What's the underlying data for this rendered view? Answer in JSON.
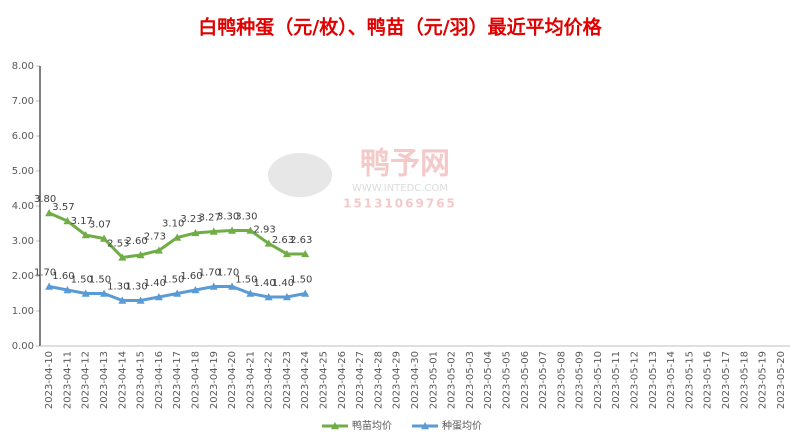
{
  "chart_data": {
    "type": "line",
    "title": "白鸭种蛋（元/枚）、鸭苗（元/羽）最近平均价格",
    "watermark": {
      "name": "鸭予网",
      "url": "WWW.INTEDC.COM",
      "phone": "15131069765"
    },
    "categories": [
      "2023-04-10",
      "2023-04-11",
      "2023-04-12",
      "2023-04-13",
      "2023-04-14",
      "2023-04-15",
      "2023-04-16",
      "2023-04-17",
      "2023-04-18",
      "2023-04-19",
      "2023-04-20",
      "2023-04-21",
      "2023-04-22",
      "2023-04-23",
      "2023-04-24",
      "2023-04-25",
      "2023-04-26",
      "2023-04-27",
      "2023-04-28",
      "2023-04-29",
      "2023-04-30",
      "2023-05-01",
      "2023-05-02",
      "2023-05-03",
      "2023-05-04",
      "2023-05-05",
      "2023-05-06",
      "2023-05-07",
      "2023-05-08",
      "2023-05-09",
      "2023-05-10",
      "2023-05-11",
      "2023-05-12",
      "2023-05-13",
      "2023-05-14",
      "2023-05-15",
      "2023-05-16",
      "2023-05-17",
      "2023-05-18",
      "2023-05-19",
      "2023-05-20"
    ],
    "series": [
      {
        "name": "鸭苗均价",
        "color": "#70ad47",
        "values": [
          3.8,
          3.57,
          3.17,
          3.07,
          2.53,
          2.6,
          2.73,
          3.1,
          3.23,
          3.27,
          3.3,
          3.3,
          2.93,
          2.63,
          2.63,
          null,
          null,
          null,
          null,
          null,
          null,
          null,
          null,
          null,
          null,
          null,
          null,
          null,
          null,
          null,
          null,
          null,
          null,
          null,
          null,
          null,
          null,
          null,
          null,
          null,
          null
        ],
        "value_labels": [
          "3.80",
          "3.57",
          "3.17",
          "3.07",
          "2.53",
          "2.60",
          "2.73",
          "3.10",
          "3.23",
          "3.27",
          "3.30",
          "3.30",
          "2.93",
          "2.63",
          "2.63",
          null,
          null,
          null,
          null,
          null,
          null,
          null,
          null,
          null,
          null,
          null,
          null,
          null,
          null,
          null,
          null,
          null,
          null,
          null,
          null,
          null,
          null,
          null,
          null,
          null,
          null
        ]
      },
      {
        "name": "种蛋均价",
        "color": "#5b9bd5",
        "values": [
          1.7,
          1.6,
          1.5,
          1.5,
          1.3,
          1.3,
          1.4,
          1.5,
          1.6,
          1.7,
          1.7,
          1.5,
          1.4,
          1.4,
          1.5,
          null,
          null,
          null,
          null,
          null,
          null,
          null,
          null,
          null,
          null,
          null,
          null,
          null,
          null,
          null,
          null,
          null,
          null,
          null,
          null,
          null,
          null,
          null,
          null,
          null,
          null
        ],
        "value_labels": [
          "1.70",
          "1.60",
          "1.50",
          "1.50",
          "1.30",
          "1.30",
          "1.40",
          "1.50",
          "1.60",
          "1.70",
          "1.70",
          "1.50",
          "1.40",
          "1.40",
          "1.50",
          null,
          null,
          null,
          null,
          null,
          null,
          null,
          null,
          null,
          null,
          null,
          null,
          null,
          null,
          null,
          null,
          null,
          null,
          null,
          null,
          null,
          null,
          null,
          null,
          null,
          null
        ]
      }
    ],
    "ylim": [
      0,
      8
    ],
    "yticks": [
      {
        "value": 0,
        "label": "0.00"
      },
      {
        "value": 1,
        "label": "1.00"
      },
      {
        "value": 2,
        "label": "2.00"
      },
      {
        "value": 3,
        "label": "3.00"
      },
      {
        "value": 4,
        "label": "4.00"
      },
      {
        "value": 5,
        "label": "5.00"
      },
      {
        "value": 6,
        "label": "6.00"
      },
      {
        "value": 7,
        "label": "7.00"
      },
      {
        "value": 8,
        "label": "8.00"
      }
    ],
    "legend": "bottom"
  }
}
